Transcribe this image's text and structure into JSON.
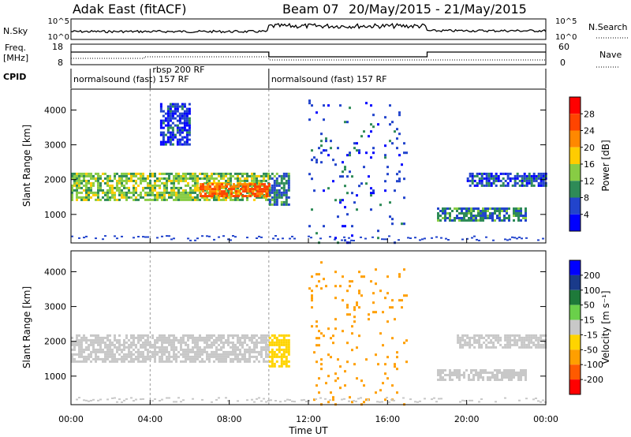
{
  "header": {
    "title": "Adak East (fitACF)",
    "beam": "Beam 07",
    "date_range": "20/May/2015 - 21/May/2015"
  },
  "noise_panel": {
    "left_label": "N.Sky",
    "right_label": "N.Search",
    "left_ticks": [
      "10^5",
      "10^0"
    ],
    "right_ticks": [
      "10^5",
      "10^0"
    ]
  },
  "freq_panel": {
    "left_label": "Freq.",
    "left_unit": "[MHz]",
    "right_label": "Nave",
    "left_ticks": [
      "18",
      "8"
    ],
    "right_ticks": [
      "60",
      "0"
    ]
  },
  "cpid_panel": {
    "label": "CPID",
    "segments": [
      {
        "label": "normalsound (fast) 157 RF",
        "start_h": 0,
        "end_h": 4,
        "row": "lower"
      },
      {
        "label": "rbsp 200 RF",
        "start_h": 4,
        "end_h": 10,
        "row": "upper"
      },
      {
        "label": "normalsound (fast) 157 RF",
        "start_h": 10,
        "end_h": 24,
        "row": "lower"
      }
    ]
  },
  "time_axis": {
    "label": "Time UT",
    "ticks": [
      "00:00",
      "04:00",
      "08:00",
      "12:00",
      "16:00",
      "20:00",
      "00:00"
    ]
  },
  "colors": {
    "power": [
      "#0000ff",
      "#2244cc",
      "#2e8b57",
      "#88cc44",
      "#ffcc00",
      "#ff8800",
      "#ff4400",
      "#ff0000"
    ],
    "velocity": [
      "#0000ff",
      "#1a3a8a",
      "#1e7a3a",
      "#6ad04a",
      "#c8c8c8",
      "#ffd400",
      "#ff9f00",
      "#ff5a00",
      "#ff0000"
    ]
  },
  "chart_data": [
    {
      "type": "heatmap",
      "panel": "power",
      "ylabel": "Slant Range [km]",
      "xlabel": "",
      "xlim": [
        0,
        24
      ],
      "ylim": [
        180,
        4600
      ],
      "yticks": [
        1000,
        2000,
        3000,
        4000
      ],
      "colorbar": {
        "label": "Power [dB]",
        "ticks": [
          "28",
          "24",
          "20",
          "16",
          "12",
          "8",
          "4"
        ],
        "range": [
          0,
          32
        ]
      },
      "regions": [
        {
          "t0": 0,
          "t1": 10,
          "r0": 1400,
          "r1": 2200,
          "level": 14
        },
        {
          "t0": 6.5,
          "t1": 10,
          "r0": 1500,
          "r1": 1900,
          "level": 24
        },
        {
          "t0": 10,
          "t1": 11,
          "r0": 1300,
          "r1": 2200,
          "level": 9
        },
        {
          "t0": 13.3,
          "t1": 14,
          "r0": 1100,
          "r1": 1350,
          "level": 7
        },
        {
          "t0": 18.5,
          "t1": 23,
          "r0": 800,
          "r1": 1200,
          "level": 9
        },
        {
          "t0": 20,
          "t1": 24,
          "r0": 1800,
          "r1": 2200,
          "level": 6
        },
        {
          "t0": 4.5,
          "t1": 6,
          "r0": 3000,
          "r1": 4200,
          "level": 5
        },
        {
          "t0": 12,
          "t1": 17,
          "r0": 200,
          "r1": 4300,
          "level": 6
        }
      ]
    },
    {
      "type": "heatmap",
      "panel": "velocity",
      "ylabel": "Slant Range [km]",
      "xlabel": "Time UT",
      "xlim": [
        0,
        24
      ],
      "ylim": [
        180,
        4600
      ],
      "yticks": [
        1000,
        2000,
        3000,
        4000
      ],
      "colorbar": {
        "label": "Velocity [m s⁻¹]",
        "ticks": [
          "200",
          "100",
          "50",
          "15",
          "-15",
          "-50",
          "-100",
          "-200"
        ],
        "range": [
          -200,
          200
        ]
      },
      "regions": [
        {
          "t0": 0,
          "t1": 10,
          "r0": 1400,
          "r1": 2200,
          "level": 0
        },
        {
          "t0": 10,
          "t1": 11,
          "r0": 1300,
          "r1": 2200,
          "level": -40
        },
        {
          "t0": 13.3,
          "t1": 14,
          "r0": 1150,
          "r1": 1350,
          "level": 50
        },
        {
          "t0": 18.5,
          "t1": 23,
          "r0": 900,
          "r1": 1200,
          "level": 0
        },
        {
          "t0": 19.5,
          "t1": 24,
          "r0": 1800,
          "r1": 2200,
          "level": 0
        },
        {
          "t0": 12,
          "t1": 17,
          "r0": 200,
          "r1": 4300,
          "level": -60
        }
      ]
    }
  ]
}
